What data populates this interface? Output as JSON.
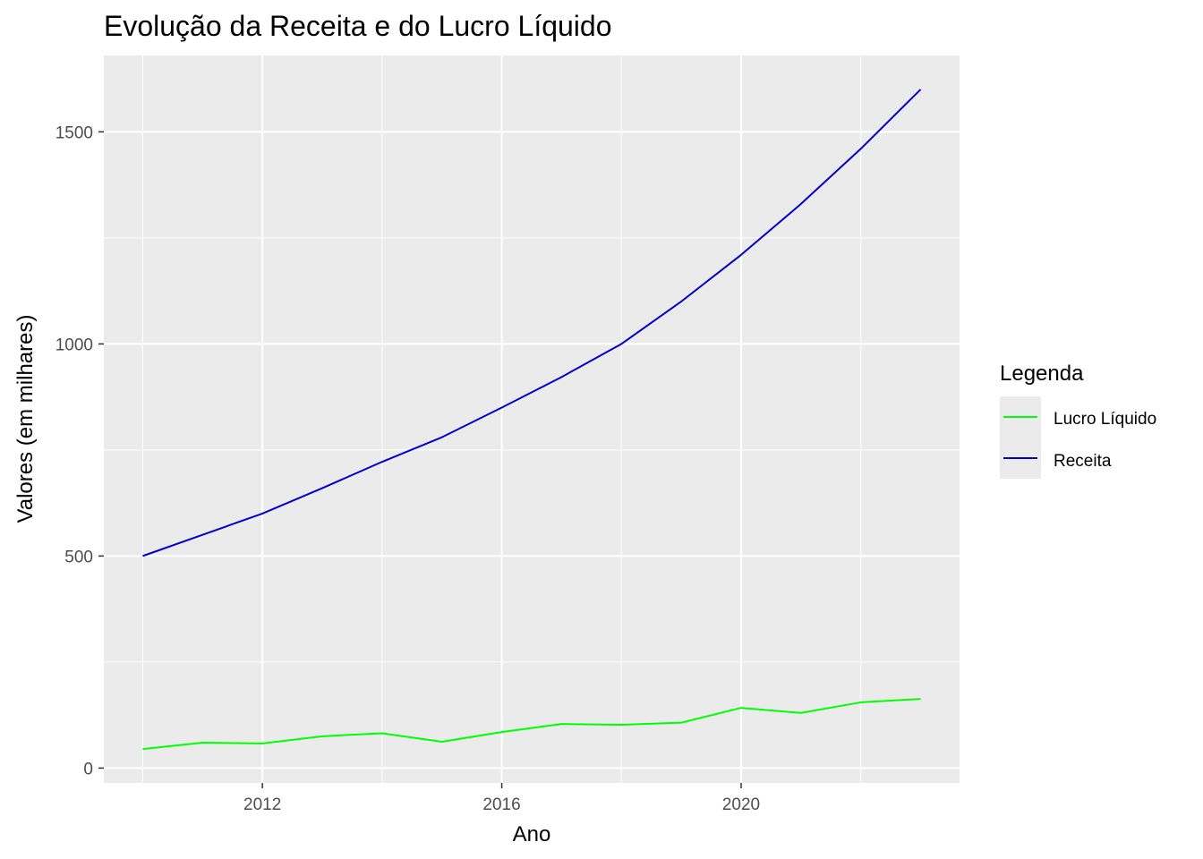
{
  "chart_data": {
    "type": "line",
    "title": "Evolução da Receita e do Lucro Líquido",
    "xlabel": "Ano",
    "ylabel": "Valores (em milhares)",
    "x": [
      2010,
      2011,
      2012,
      2013,
      2014,
      2015,
      2016,
      2017,
      2018,
      2019,
      2020,
      2021,
      2022,
      2023
    ],
    "xlim": [
      2009.35,
      2023.65
    ],
    "ylim": [
      -35,
      1680
    ],
    "x_ticks": [
      2012,
      2016,
      2020
    ],
    "x_tick_labels": [
      "2012",
      "2016",
      "2020"
    ],
    "y_ticks": [
      0,
      500,
      1000,
      1500
    ],
    "y_tick_labels": [
      "0",
      "500",
      "1000",
      "1500"
    ],
    "grid": true,
    "background": "#ebebeb",
    "legend": {
      "title": "Legenda",
      "position": "right",
      "entries": [
        "Lucro Líquido",
        "Receita"
      ]
    },
    "series": [
      {
        "name": "Lucro Líquido",
        "color": "#00ff00",
        "values": [
          45,
          60,
          58,
          75,
          82,
          62,
          85,
          104,
          102,
          107,
          142,
          130,
          155,
          163
        ]
      },
      {
        "name": "Receita",
        "color": "#0000cd",
        "values": [
          500,
          550,
          600,
          660,
          722,
          780,
          850,
          922,
          1000,
          1100,
          1210,
          1330,
          1460,
          1600
        ]
      }
    ]
  }
}
